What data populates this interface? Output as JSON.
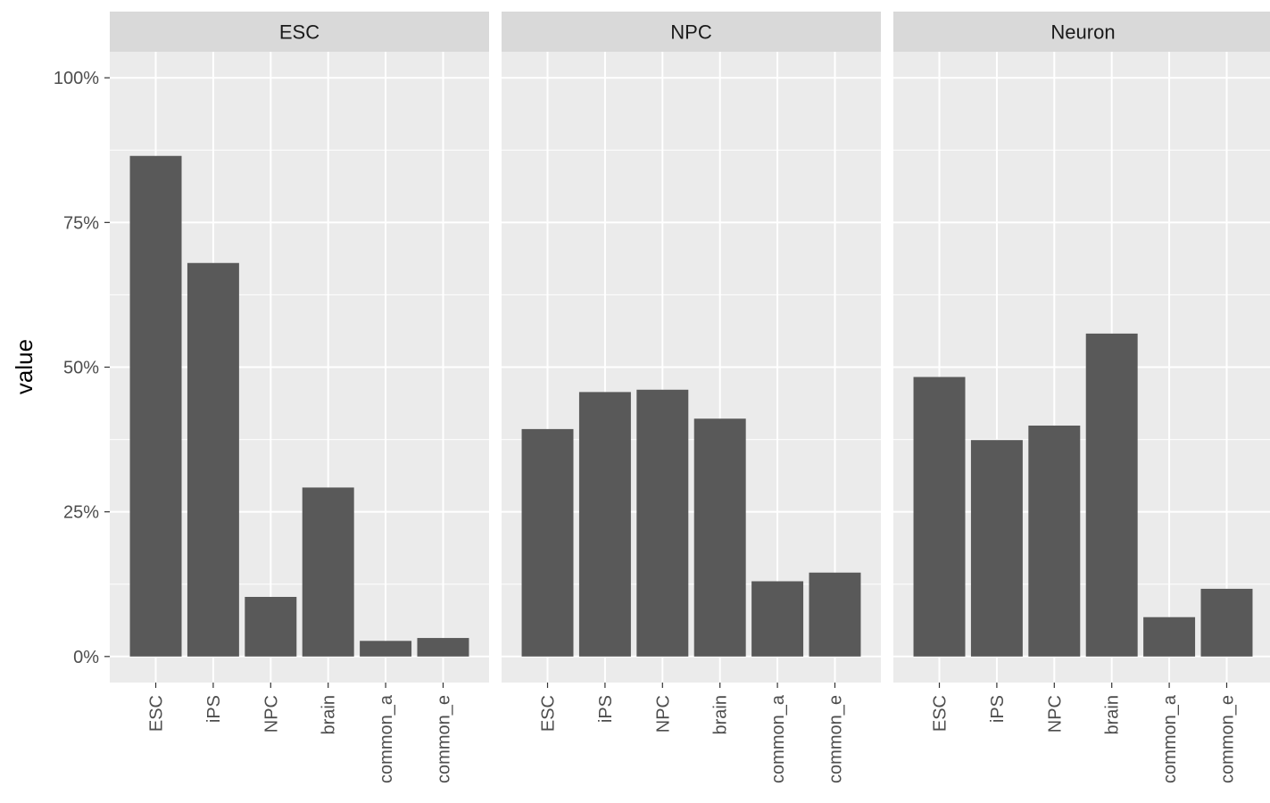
{
  "chart_data": {
    "type": "bar",
    "ylabel": "value",
    "xlabel": "",
    "ylim": [
      -0.045,
      1.045
    ],
    "yticks": [
      0,
      0.25,
      0.5,
      0.75,
      1.0
    ],
    "ytick_labels": [
      "0%",
      "25%",
      "50%",
      "75%",
      "100%"
    ],
    "categories": [
      "ESC",
      "iPS",
      "NPC",
      "brain",
      "common_a",
      "common_e"
    ],
    "grid": true,
    "bar_color": "#595959",
    "panel_background": "#ebebeb",
    "strip_background": "#d9d9d9",
    "facets": [
      {
        "label": "ESC",
        "values": [
          0.865,
          0.68,
          0.103,
          0.292,
          0.027,
          0.032
        ]
      },
      {
        "label": "NPC",
        "values": [
          0.393,
          0.457,
          0.461,
          0.411,
          0.13,
          0.145
        ]
      },
      {
        "label": "Neuron",
        "values": [
          0.483,
          0.374,
          0.399,
          0.558,
          0.068,
          0.117
        ]
      }
    ]
  }
}
